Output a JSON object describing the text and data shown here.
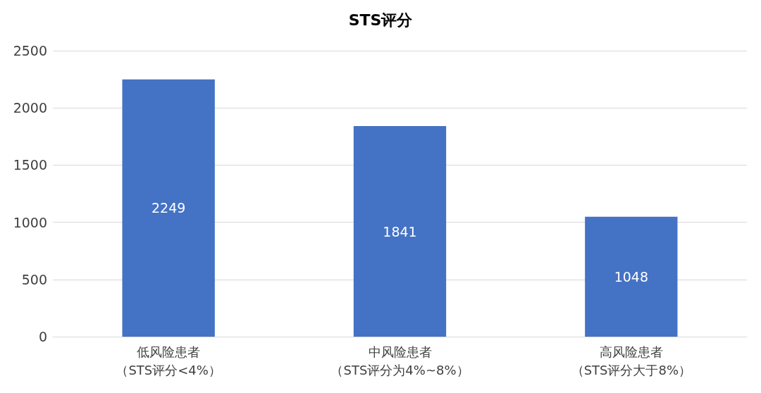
{
  "chart_data": {
    "type": "bar",
    "title": "STS评分",
    "categories": [
      "低风险患者（STS评分<4%）",
      "中风险患者（STS评分为4%~8%）",
      "高风险患者（STS评分大于8%）"
    ],
    "values": [
      2249,
      1841,
      1048
    ],
    "color": "#4472c4",
    "ylim": [
      0,
      2500
    ],
    "yticks": [
      0,
      500,
      1000,
      1500,
      2000,
      2500
    ],
    "grid": "y",
    "data_labels": true
  }
}
